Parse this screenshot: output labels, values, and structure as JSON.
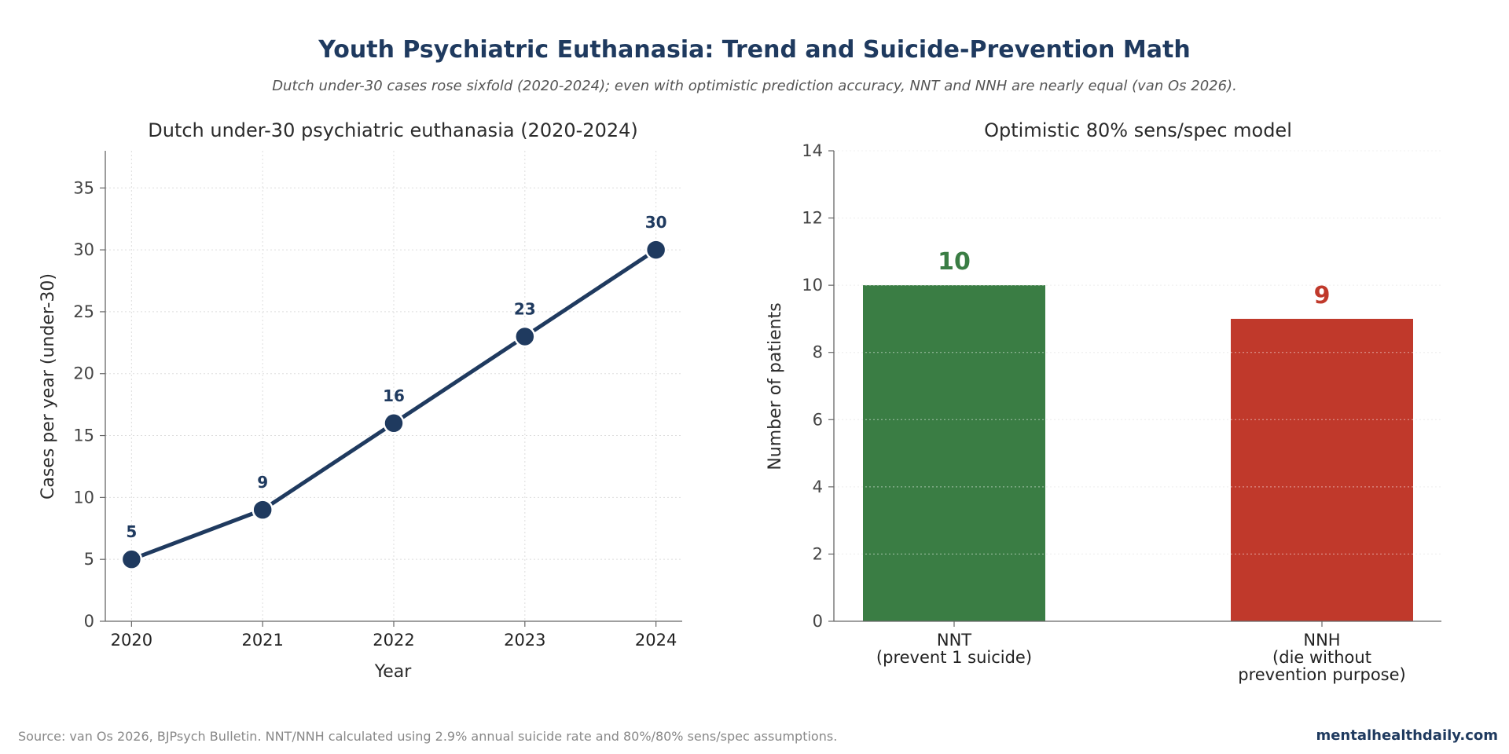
{
  "title": "Youth Psychiatric Euthanasia: Trend and Suicide-Prevention Math",
  "subtitle": "Dutch under-30 cases rose sixfold (2020-2024); even with optimistic prediction accuracy, NNT and NNH are nearly equal (van Os 2026).",
  "footer": {
    "source": "Source: van Os 2026, BJPsych Bulletin. NNT/NNH calculated using 2.9% annual suicide rate and 80%/80% sens/spec assumptions.",
    "brand": "mentalhealthdaily.com"
  },
  "chart_data": [
    {
      "type": "line",
      "title": "Dutch under-30 psychiatric euthanasia (2020-2024)",
      "xlabel": "Year",
      "ylabel": "Cases per year (under-30)",
      "x": [
        2020,
        2021,
        2022,
        2023,
        2024
      ],
      "series": [
        {
          "values": [
            5,
            9,
            16,
            23,
            30
          ],
          "color": "#1f3a5f"
        }
      ],
      "data_labels": [
        "5",
        "9",
        "16",
        "23",
        "30"
      ],
      "yticks": [
        0,
        5,
        10,
        15,
        20,
        25,
        30,
        35
      ],
      "ylim": [
        0,
        38
      ],
      "xlim": [
        2019.8,
        2024.2
      ],
      "grid": true
    },
    {
      "type": "bar",
      "title": "Optimistic 80% sens/spec model",
      "ylabel": "Number of patients",
      "categories": [
        "NNT\n(prevent 1 suicide)",
        "NNH\n(die without\nprevention purpose)"
      ],
      "values": [
        10,
        9
      ],
      "data_labels": [
        "10",
        "9"
      ],
      "colors": [
        "#3a7d44",
        "#c0392b"
      ],
      "yticks": [
        0,
        2,
        4,
        6,
        8,
        10,
        12,
        14
      ],
      "ylim": [
        0,
        14
      ],
      "grid": true
    }
  ]
}
